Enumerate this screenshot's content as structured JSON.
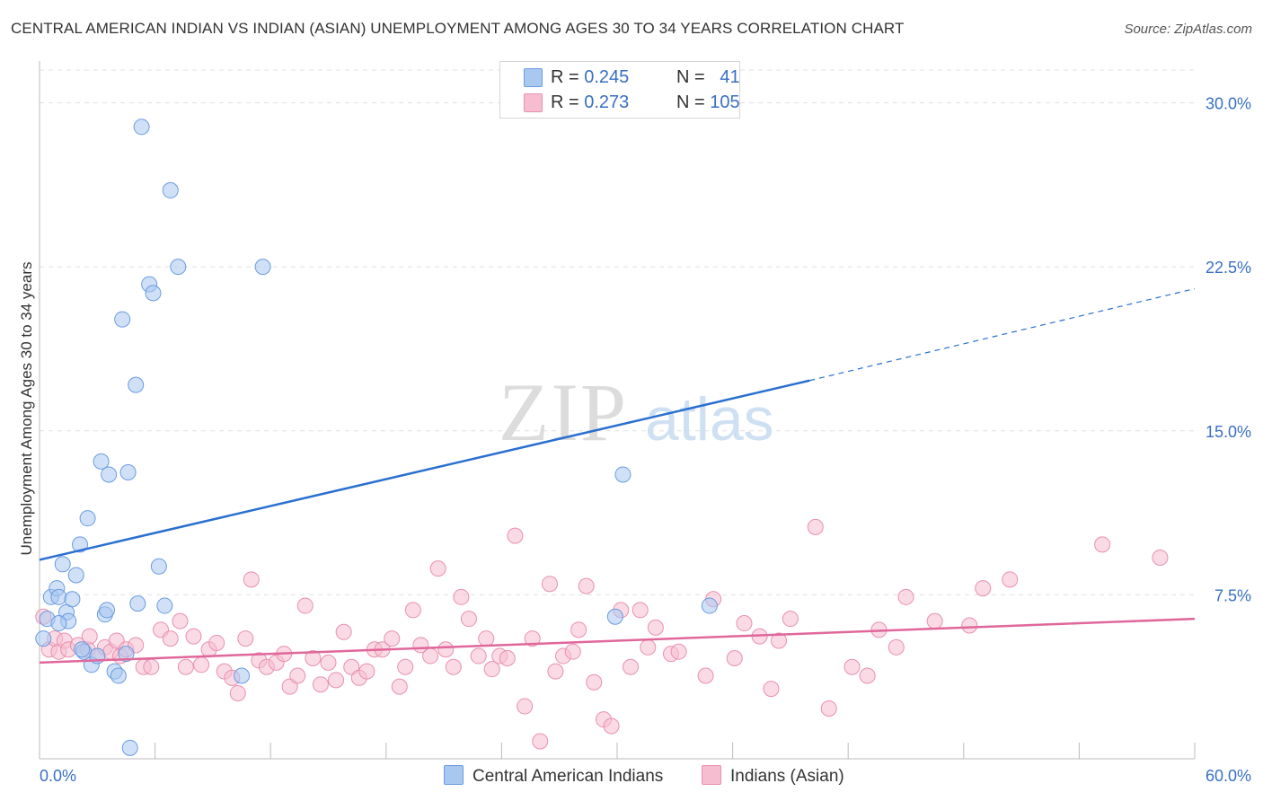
{
  "title": "CENTRAL AMERICAN INDIAN VS INDIAN (ASIAN) UNEMPLOYMENT AMONG AGES 30 TO 34 YEARS CORRELATION CHART",
  "source": "Source: ZipAtlas.com",
  "watermark": {
    "zip": "ZIP",
    "atlas": "atlas"
  },
  "legend": {
    "series1": {
      "r_label": "R =",
      "r_value": "0.245",
      "n_label": "N =",
      "n_value": "41"
    },
    "series2": {
      "r_label": "R =",
      "r_value": "0.273",
      "n_label": "N =",
      "n_value": "105"
    }
  },
  "colors": {
    "series1_fill": "#a9c8f0",
    "series1_stroke": "#6b9be0",
    "series1_line": "#2a6fd0",
    "series2_fill": "#f6bdd0",
    "series2_stroke": "#e890ae",
    "series2_line": "#e0679a",
    "tick_text": "#3a6fc4",
    "grid": "#e0e0e0"
  },
  "chart_data": {
    "type": "scatter",
    "title": "CENTRAL AMERICAN INDIAN VS INDIAN (ASIAN) UNEMPLOYMENT AMONG AGES 30 TO 34 YEARS CORRELATION CHART",
    "xlabel": "",
    "ylabel": "Unemployment Among Ages 30 to 34 years",
    "xlim": [
      0,
      60
    ],
    "ylim": [
      0,
      31.5
    ],
    "x_tick_labels": [
      "0.0%",
      "60.0%"
    ],
    "y_ticks": [
      7.5,
      15.0,
      22.5,
      30.0
    ],
    "y_tick_labels": [
      "7.5%",
      "15.0%",
      "22.5%",
      "30.0%"
    ],
    "grid": true,
    "series": [
      {
        "name": "Central American Indians",
        "trend": {
          "x0": 0,
          "y0": 9.1,
          "x1": 40,
          "y1": 17.3,
          "dash_x1": 60,
          "dash_y1": 21.5
        },
        "points": [
          [
            0.2,
            5.5
          ],
          [
            0.4,
            6.4
          ],
          [
            0.6,
            7.4
          ],
          [
            0.9,
            7.8
          ],
          [
            1.0,
            7.4
          ],
          [
            1.2,
            8.9
          ],
          [
            1.4,
            6.7
          ],
          [
            1.5,
            6.3
          ],
          [
            1.7,
            7.3
          ],
          [
            1.9,
            8.4
          ],
          [
            2.1,
            9.8
          ],
          [
            2.3,
            4.9
          ],
          [
            2.5,
            11.0
          ],
          [
            2.7,
            4.3
          ],
          [
            3.0,
            4.7
          ],
          [
            3.2,
            13.6
          ],
          [
            3.4,
            6.6
          ],
          [
            3.6,
            13.0
          ],
          [
            3.9,
            4.0
          ],
          [
            4.1,
            3.8
          ],
          [
            4.3,
            20.1
          ],
          [
            4.5,
            4.8
          ],
          [
            4.6,
            13.1
          ],
          [
            4.7,
            0.5
          ],
          [
            5.0,
            17.1
          ],
          [
            5.1,
            7.1
          ],
          [
            5.3,
            28.9
          ],
          [
            5.7,
            21.7
          ],
          [
            5.9,
            21.3
          ],
          [
            6.2,
            8.8
          ],
          [
            6.5,
            7.0
          ],
          [
            6.8,
            26.0
          ],
          [
            7.2,
            22.5
          ],
          [
            10.5,
            3.8
          ],
          [
            11.6,
            22.5
          ],
          [
            2.2,
            5.0
          ],
          [
            3.5,
            6.8
          ],
          [
            1.0,
            6.2
          ],
          [
            30.3,
            13.0
          ],
          [
            29.9,
            6.5
          ],
          [
            34.8,
            7.0
          ]
        ]
      },
      {
        "name": "Indians (Asian)",
        "trend": {
          "x0": 0,
          "y0": 4.4,
          "x1": 60,
          "y1": 6.4
        },
        "points": [
          [
            0.2,
            6.5
          ],
          [
            0.5,
            5.0
          ],
          [
            0.8,
            5.5
          ],
          [
            1.0,
            4.9
          ],
          [
            1.3,
            5.4
          ],
          [
            1.5,
            5.0
          ],
          [
            2.0,
            5.2
          ],
          [
            2.5,
            5.0
          ],
          [
            2.6,
            5.6
          ],
          [
            3.0,
            4.7
          ],
          [
            3.4,
            5.1
          ],
          [
            3.7,
            4.9
          ],
          [
            4.0,
            5.4
          ],
          [
            4.2,
            4.7
          ],
          [
            4.5,
            5.0
          ],
          [
            5.0,
            5.2
          ],
          [
            5.4,
            4.2
          ],
          [
            5.8,
            4.2
          ],
          [
            6.3,
            5.9
          ],
          [
            6.8,
            5.5
          ],
          [
            7.3,
            6.3
          ],
          [
            7.6,
            4.2
          ],
          [
            8.0,
            5.6
          ],
          [
            8.4,
            4.3
          ],
          [
            8.8,
            5.0
          ],
          [
            9.2,
            5.3
          ],
          [
            9.6,
            4.0
          ],
          [
            10.0,
            3.7
          ],
          [
            10.3,
            3.0
          ],
          [
            10.7,
            5.5
          ],
          [
            11.0,
            8.2
          ],
          [
            11.4,
            4.5
          ],
          [
            11.8,
            4.2
          ],
          [
            12.3,
            4.4
          ],
          [
            12.7,
            4.8
          ],
          [
            13.0,
            3.3
          ],
          [
            13.4,
            3.8
          ],
          [
            13.8,
            7.0
          ],
          [
            14.2,
            4.6
          ],
          [
            14.6,
            3.4
          ],
          [
            15.0,
            4.4
          ],
          [
            15.4,
            3.6
          ],
          [
            15.8,
            5.8
          ],
          [
            16.2,
            4.2
          ],
          [
            16.6,
            3.7
          ],
          [
            17.0,
            4.0
          ],
          [
            17.4,
            5.0
          ],
          [
            17.8,
            5.0
          ],
          [
            18.3,
            5.5
          ],
          [
            18.7,
            3.3
          ],
          [
            19.0,
            4.2
          ],
          [
            19.4,
            6.8
          ],
          [
            19.8,
            5.2
          ],
          [
            20.3,
            4.7
          ],
          [
            20.7,
            8.7
          ],
          [
            21.1,
            5.0
          ],
          [
            21.5,
            4.2
          ],
          [
            21.9,
            7.4
          ],
          [
            22.3,
            6.4
          ],
          [
            22.8,
            4.7
          ],
          [
            23.2,
            5.5
          ],
          [
            23.5,
            4.1
          ],
          [
            23.9,
            4.7
          ],
          [
            24.3,
            4.6
          ],
          [
            24.7,
            10.2
          ],
          [
            25.2,
            2.4
          ],
          [
            25.6,
            5.5
          ],
          [
            26.0,
            0.8
          ],
          [
            26.5,
            8.0
          ],
          [
            26.8,
            4.0
          ],
          [
            27.2,
            4.7
          ],
          [
            27.7,
            4.9
          ],
          [
            28.0,
            5.9
          ],
          [
            28.4,
            7.9
          ],
          [
            28.8,
            3.5
          ],
          [
            29.3,
            1.8
          ],
          [
            29.7,
            1.5
          ],
          [
            30.2,
            6.8
          ],
          [
            30.7,
            4.2
          ],
          [
            31.2,
            6.8
          ],
          [
            31.6,
            5.1
          ],
          [
            32.0,
            6.0
          ],
          [
            32.8,
            4.8
          ],
          [
            33.2,
            4.9
          ],
          [
            34.6,
            3.8
          ],
          [
            35.0,
            7.3
          ],
          [
            36.1,
            4.6
          ],
          [
            36.6,
            6.2
          ],
          [
            37.4,
            5.6
          ],
          [
            38.0,
            3.2
          ],
          [
            38.4,
            5.4
          ],
          [
            39.0,
            6.4
          ],
          [
            40.3,
            10.6
          ],
          [
            41.0,
            2.3
          ],
          [
            42.2,
            4.2
          ],
          [
            43.0,
            3.8
          ],
          [
            43.6,
            5.9
          ],
          [
            44.5,
            5.1
          ],
          [
            45.0,
            7.4
          ],
          [
            46.5,
            6.3
          ],
          [
            48.3,
            6.1
          ],
          [
            49.0,
            7.8
          ],
          [
            50.4,
            8.2
          ],
          [
            55.2,
            9.8
          ],
          [
            58.2,
            9.2
          ]
        ]
      }
    ]
  },
  "y_axis_label": "Unemployment Among Ages 30 to 34 years",
  "x_tick_min": "0.0%",
  "x_tick_max": "60.0%",
  "bottom_legend": {
    "series1": "Central American Indians",
    "series2": "Indians (Asian)"
  }
}
